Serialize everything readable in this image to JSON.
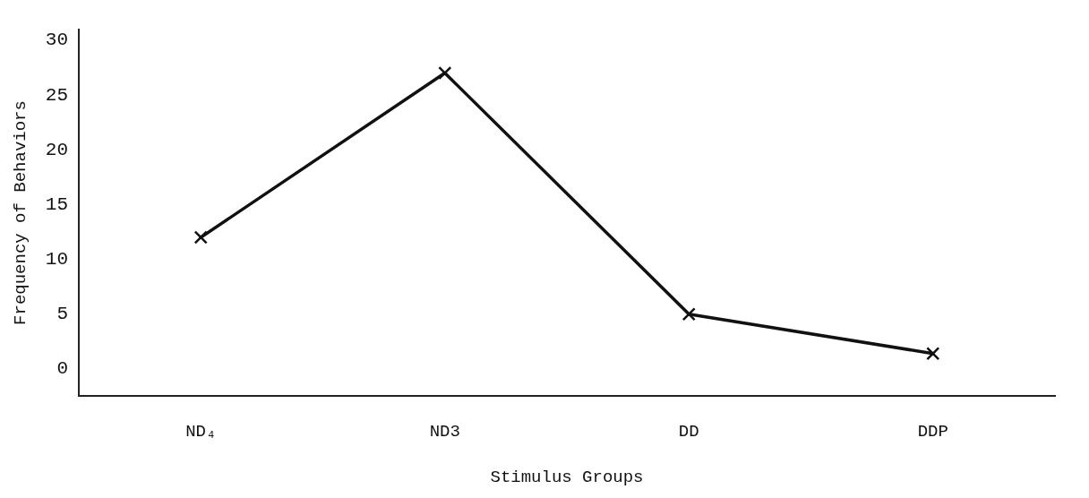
{
  "chart_data": {
    "type": "line",
    "xlabel": "Stimulus Groups",
    "ylabel": "Frequency of Behaviors",
    "categories": [
      "ND₄",
      "ND3",
      "DD",
      "DDP"
    ],
    "values": [
      12,
      27,
      5,
      1.4
    ],
    "color": "#111111",
    "marker": "cross",
    "line_style": "solid",
    "ylim": [
      -2.5,
      31
    ],
    "yticks": [
      0,
      5,
      10,
      15,
      20,
      25,
      30
    ],
    "grid": false,
    "legend": false
  }
}
